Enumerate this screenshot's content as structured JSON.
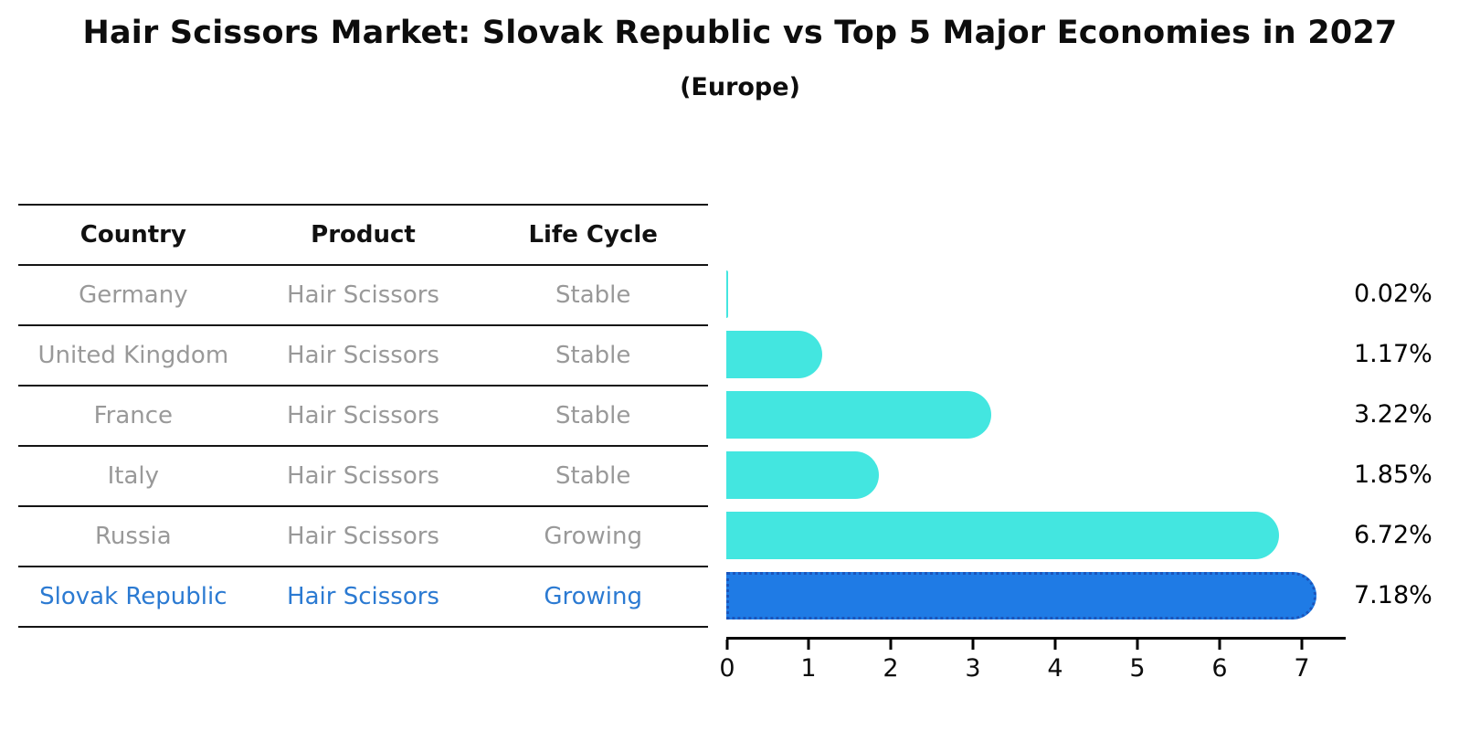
{
  "header": {
    "title": "Hair Scissors Market: Slovak Republic vs Top 5 Major Economies in 2027",
    "subtitle": "(Europe)"
  },
  "table": {
    "columns": [
      "Country",
      "Product",
      "Life Cycle"
    ],
    "rows": [
      {
        "country": "Germany",
        "product": "Hair Scissors",
        "life_cycle": "Stable",
        "highlighted": false
      },
      {
        "country": "United Kingdom",
        "product": "Hair Scissors",
        "life_cycle": "Stable",
        "highlighted": false
      },
      {
        "country": "France",
        "product": "Hair Scissors",
        "life_cycle": "Stable",
        "highlighted": false
      },
      {
        "country": "Italy",
        "product": "Hair Scissors",
        "life_cycle": "Stable",
        "highlighted": false
      },
      {
        "country": "Russia",
        "product": "Hair Scissors",
        "life_cycle": "Growing",
        "highlighted": false
      },
      {
        "country": "Slovak Republic",
        "product": "Hair Scissors",
        "life_cycle": "Growing",
        "highlighted": true
      }
    ]
  },
  "chart_data": {
    "type": "bar",
    "orientation": "horizontal",
    "title": "Hair Scissors Market: Slovak Republic vs Top 5 Major Economies in 2027",
    "subtitle": "(Europe)",
    "categories": [
      "Germany",
      "United Kingdom",
      "France",
      "Italy",
      "Russia",
      "Slovak Republic"
    ],
    "values": [
      0.02,
      1.17,
      3.22,
      1.85,
      6.72,
      7.18
    ],
    "value_labels": [
      "0.02%",
      "1.17%",
      "3.22%",
      "1.85%",
      "6.72%",
      "7.18%"
    ],
    "x_ticks": [
      0,
      1,
      2,
      3,
      4,
      5,
      6,
      7
    ],
    "xlim": [
      0,
      7.5
    ],
    "grid": false,
    "legend": false,
    "bar_color": "#43e6e0",
    "highlight_bar_color": "#1f7be5",
    "highlight_edge_color": "#1b55bb",
    "highlight_index": 5
  },
  "colors": {
    "title_text": "#0d0d0d",
    "table_header_text": "#111111",
    "table_row_text": "#999999",
    "highlight_row_text": "#2b7ad2",
    "axis": "#000000",
    "value_label_text": "#000000"
  }
}
